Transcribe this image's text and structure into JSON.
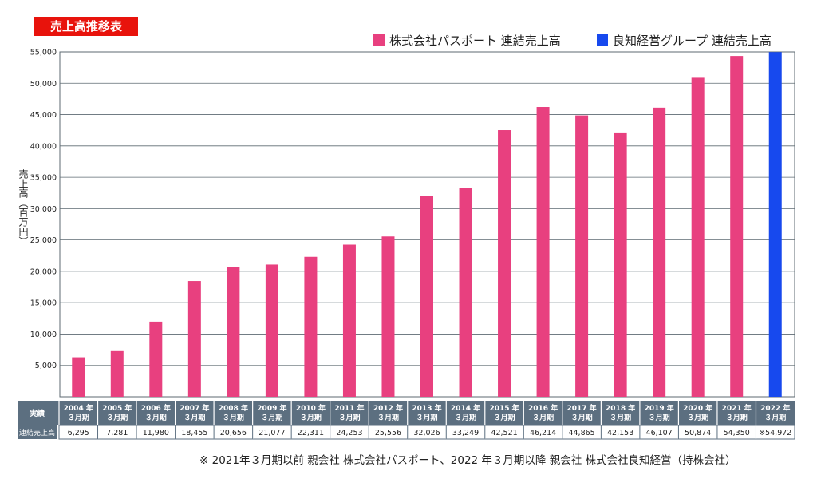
{
  "header": {
    "title": "売上高推移表"
  },
  "legend": [
    {
      "label": "株式会社パスポート 連結売上高",
      "color": "#e8407f"
    },
    {
      "label": "良知経営グループ 連結売上高",
      "color": "#1749ee"
    }
  ],
  "table": {
    "row1_label": "実績",
    "row2_label": "連結売上高"
  },
  "footnote": "※ 2021年３月期以前 親会社 株式会社パスポート、2022 年３月期以降 親会社 株式会社良知経営（持株会社）",
  "chart_data": {
    "type": "bar",
    "title": "売上高推移表",
    "ylabel": "売上高（百万円）",
    "xlabel": "",
    "ylim": [
      0,
      55000
    ],
    "yticks": [
      "5,000",
      "10,000",
      "15,000",
      "20,000",
      "25,000",
      "30,000",
      "35,000",
      "40,000",
      "45,000",
      "50,000",
      "55,000"
    ],
    "grid": true,
    "legend_position": "top-right",
    "categories_year": [
      "2004 年",
      "2005 年",
      "2006 年",
      "2007 年",
      "2008 年",
      "2009 年",
      "2010 年",
      "2011 年",
      "2012 年",
      "2013 年",
      "2014 年",
      "2015 年",
      "2016 年",
      "2017 年",
      "2018 年",
      "2019 年",
      "2020 年",
      "2021 年",
      "2022 年"
    ],
    "categories_period": "３月期",
    "values": [
      6295,
      7281,
      11980,
      18455,
      20656,
      21077,
      22311,
      24253,
      25556,
      32026,
      33249,
      42521,
      46214,
      44865,
      42153,
      46107,
      50874,
      54350,
      54972
    ],
    "value_labels": [
      "6,295",
      "7,281",
      "11,980",
      "18,455",
      "20,656",
      "21,077",
      "22,311",
      "24,253",
      "25,556",
      "32,026",
      "33,249",
      "42,521",
      "46,214",
      "44,865",
      "42,153",
      "46,107",
      "50,874",
      "54,350",
      "※54,972"
    ],
    "series_index": [
      0,
      0,
      0,
      0,
      0,
      0,
      0,
      0,
      0,
      0,
      0,
      0,
      0,
      0,
      0,
      0,
      0,
      0,
      1
    ]
  }
}
